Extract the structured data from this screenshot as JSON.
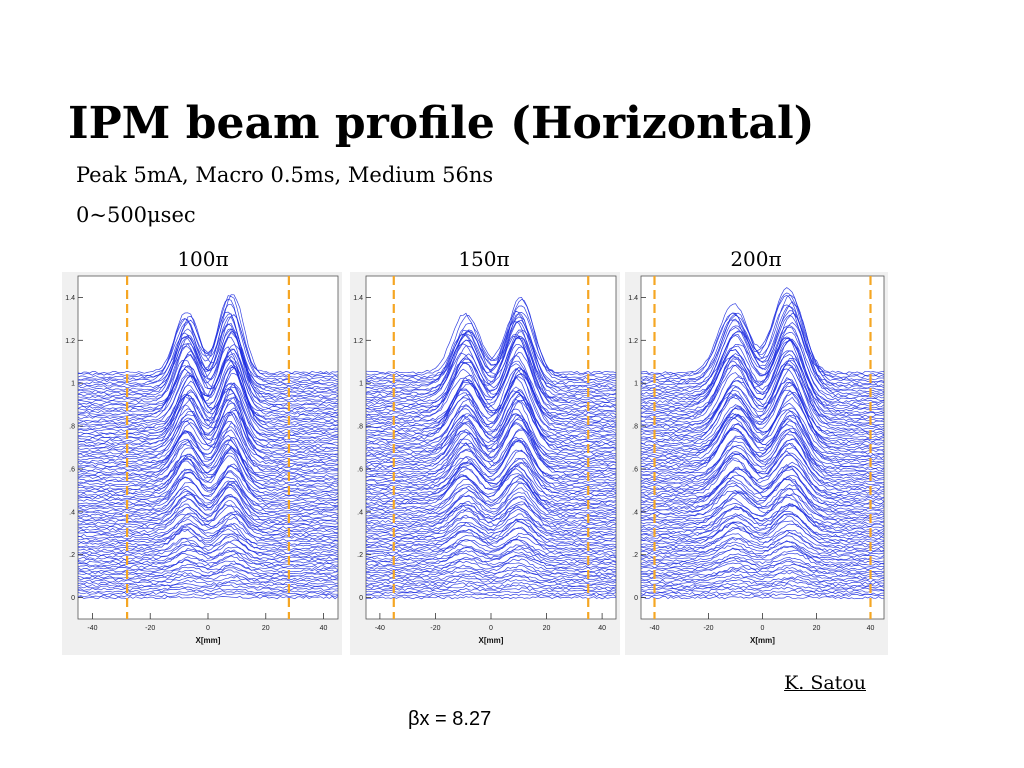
{
  "slide": {
    "title": "IPM beam profile (Horizontal)",
    "subtitle": "Peak 5mA, Macro 0.5ms, Medium 56ns",
    "time_range": "0~500μsec",
    "author": "K. Satou",
    "beta": "βx = 8.27"
  },
  "colors": {
    "trace": "#1f2fe0",
    "marker": "#f5a623",
    "frame_bg": "#f0f0f0",
    "plot_bg": "#ffffff"
  },
  "chart_data": [
    {
      "type": "line",
      "panel_label": "100π",
      "xlabel": "X[mm]",
      "ylabel": "",
      "xlim": [
        -45,
        45
      ],
      "ylim": [
        -0.1,
        1.5
      ],
      "x_ticks": [
        "-40",
        "-20",
        "0",
        "20",
        "40"
      ],
      "y_ticks": [
        "0",
        ".2",
        ".4",
        ".6",
        ".8",
        "1",
        "1.2",
        "1.4"
      ],
      "markers_x": [
        -28,
        28
      ],
      "profile": {
        "peak1_x": -7,
        "peak1_amp": 0.28,
        "peak2_x": 8,
        "peak2_amp": 0.34,
        "width": 5.5
      },
      "baseline_range": [
        0.0,
        1.05
      ],
      "n_traces": 110
    },
    {
      "type": "line",
      "panel_label": "150π",
      "xlabel": "X[mm]",
      "ylabel": "",
      "xlim": [
        -45,
        45
      ],
      "ylim": [
        -0.1,
        1.5
      ],
      "x_ticks": [
        "-40",
        "-20",
        "0",
        "20",
        "40"
      ],
      "y_ticks": [
        "0",
        ".2",
        ".4",
        ".6",
        ".8",
        "1",
        "1.2",
        "1.4"
      ],
      "markers_x": [
        -35,
        35
      ],
      "profile": {
        "peak1_x": -9,
        "peak1_amp": 0.26,
        "peak2_x": 10,
        "peak2_amp": 0.33,
        "width": 6.5
      },
      "baseline_range": [
        0.0,
        1.05
      ],
      "n_traces": 110
    },
    {
      "type": "line",
      "panel_label": "200π",
      "xlabel": "X[mm]",
      "ylabel": "",
      "xlim": [
        -45,
        45
      ],
      "ylim": [
        -0.1,
        1.5
      ],
      "x_ticks": [
        "-40",
        "-20",
        "0",
        "20",
        "40"
      ],
      "y_ticks": [
        "0",
        ".2",
        ".4",
        ".6",
        ".8",
        "1",
        "1.2",
        "1.4"
      ],
      "markers_x": [
        -40,
        40
      ],
      "profile": {
        "peak1_x": -10,
        "peak1_amp": 0.3,
        "peak2_x": 10,
        "peak2_amp": 0.36,
        "width": 7.5
      },
      "baseline_range": [
        0.0,
        1.05
      ],
      "n_traces": 110
    }
  ]
}
